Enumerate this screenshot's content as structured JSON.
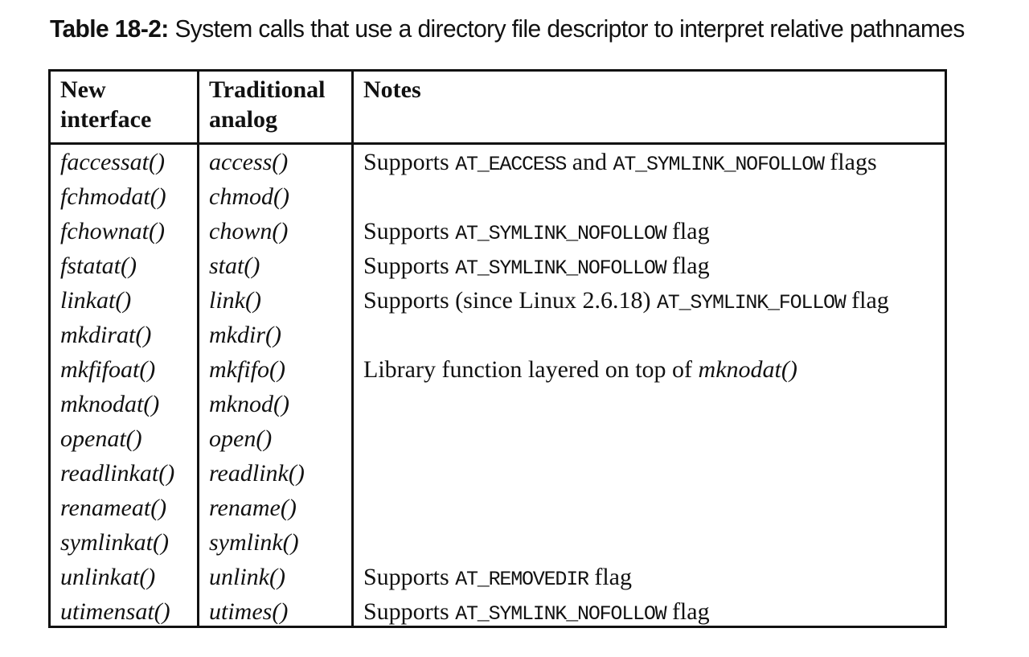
{
  "caption": {
    "label": "Table 18-2:",
    "text": " System calls that use a directory file descriptor to interpret relative pathnames"
  },
  "table": {
    "headers": {
      "col1_line1": "New",
      "col1_line2": "interface",
      "col2_line1": "Traditional",
      "col2_line2": "analog",
      "col3": "Notes"
    },
    "rows": [
      {
        "new": "faccessat()",
        "old": "access()",
        "notes": [
          {
            "t": "text",
            "v": "Supports "
          },
          {
            "t": "code",
            "v": "AT_EACCESS"
          },
          {
            "t": "text",
            "v": " and "
          },
          {
            "t": "code",
            "v": "AT_SYMLINK_NOFOLLOW"
          },
          {
            "t": "text",
            "v": " flags"
          }
        ]
      },
      {
        "new": "fchmodat()",
        "old": "chmod()",
        "notes": []
      },
      {
        "new": "fchownat()",
        "old": "chown()",
        "notes": [
          {
            "t": "text",
            "v": "Supports "
          },
          {
            "t": "code",
            "v": "AT_SYMLINK_NOFOLLOW"
          },
          {
            "t": "text",
            "v": " flag"
          }
        ]
      },
      {
        "new": "fstatat()",
        "old": "stat()",
        "notes": [
          {
            "t": "text",
            "v": "Supports "
          },
          {
            "t": "code",
            "v": "AT_SYMLINK_NOFOLLOW"
          },
          {
            "t": "text",
            "v": " flag"
          }
        ]
      },
      {
        "new": "linkat()",
        "old": "link()",
        "notes": [
          {
            "t": "text",
            "v": "Supports (since Linux 2.6.18) "
          },
          {
            "t": "code",
            "v": "AT_SYMLINK_FOLLOW"
          },
          {
            "t": "text",
            "v": " flag"
          }
        ]
      },
      {
        "new": "mkdirat()",
        "old": "mkdir()",
        "notes": []
      },
      {
        "new": "mkfifoat()",
        "old": "mkfifo()",
        "notes": [
          {
            "t": "text",
            "v": "Library function layered on top of "
          },
          {
            "t": "ital",
            "v": "mknodat()"
          }
        ]
      },
      {
        "new": "mknodat()",
        "old": "mknod()",
        "notes": []
      },
      {
        "new": "openat()",
        "old": "open()",
        "notes": []
      },
      {
        "new": "readlinkat()",
        "old": "readlink()",
        "notes": []
      },
      {
        "new": "renameat()",
        "old": "rename()",
        "notes": []
      },
      {
        "new": "symlinkat()",
        "old": "symlink()",
        "notes": []
      },
      {
        "new": "unlinkat()",
        "old": "unlink()",
        "notes": [
          {
            "t": "text",
            "v": "Supports "
          },
          {
            "t": "code",
            "v": "AT_REMOVEDIR"
          },
          {
            "t": "text",
            "v": " flag"
          }
        ]
      },
      {
        "new": "utimensat()",
        "old": "utimes()",
        "notes": [
          {
            "t": "text",
            "v": "Supports "
          },
          {
            "t": "code",
            "v": "AT_SYMLINK_NOFOLLOW"
          },
          {
            "t": "text",
            "v": " flag"
          }
        ]
      }
    ]
  }
}
